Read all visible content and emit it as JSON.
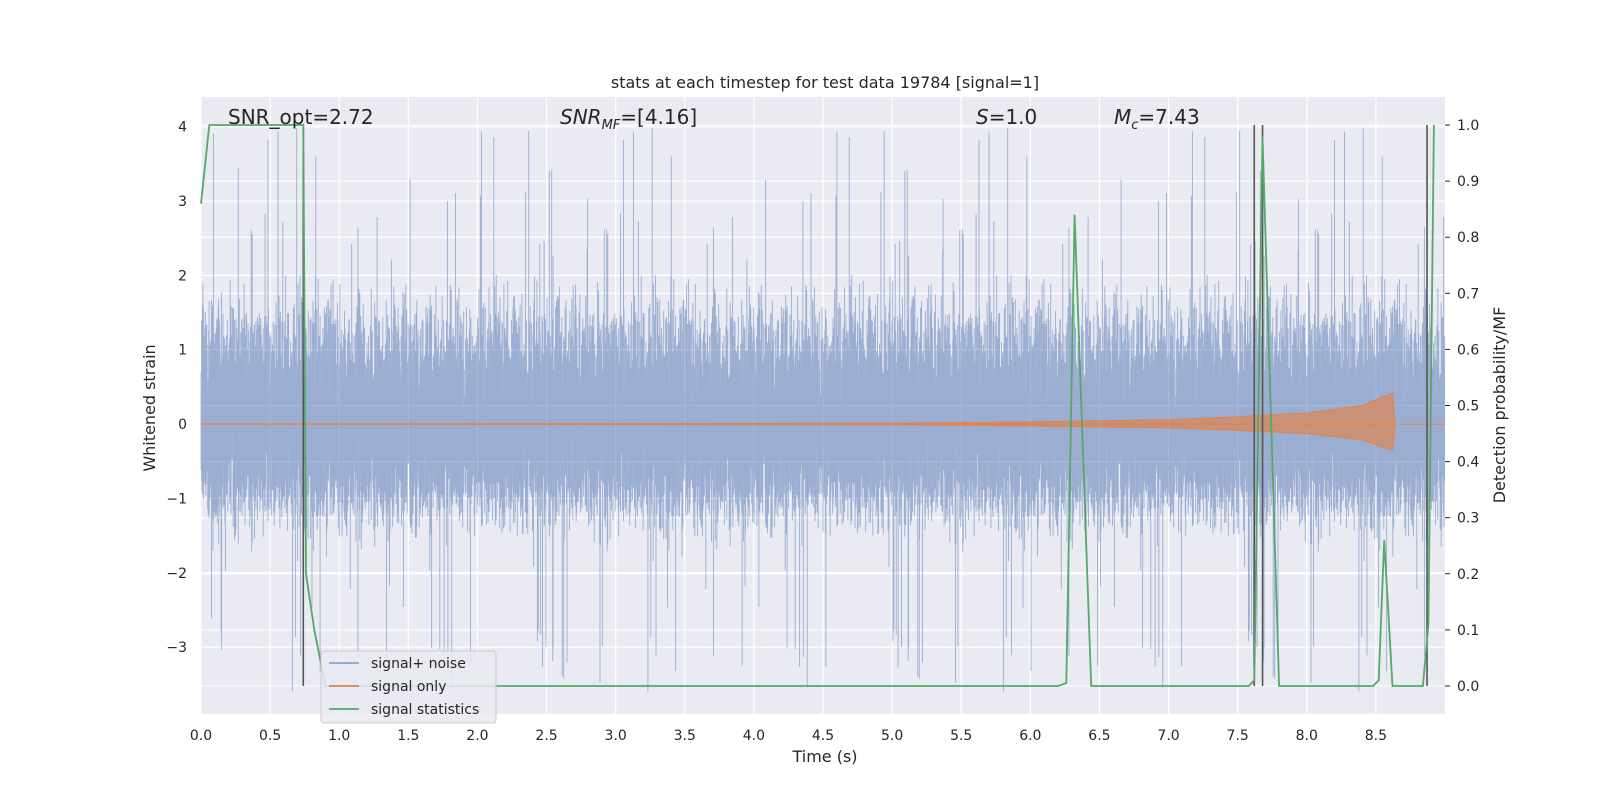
{
  "chart_data": {
    "type": "line",
    "title": "stats at each timestep for test data 19784 [signal=1]",
    "xlabel": "Time (s)",
    "ylabel_left": "Whitened strain",
    "ylabel_right": "Detection probability/MF",
    "xlim": [
      0.0,
      9.0
    ],
    "ylim_left": [
      -3.9,
      4.4
    ],
    "ylim_right": [
      -0.05,
      1.05
    ],
    "x_ticks": [
      "0.0",
      "0.5",
      "1.0",
      "1.5",
      "2.0",
      "2.5",
      "3.0",
      "3.5",
      "4.0",
      "4.5",
      "5.0",
      "5.5",
      "6.0",
      "6.5",
      "7.0",
      "7.5",
      "8.0",
      "8.5"
    ],
    "y_left_ticks": [
      "4",
      "3",
      "2",
      "1",
      "0",
      "−1",
      "−2",
      "−3"
    ],
    "y_right_ticks": [
      "1.0",
      "0.9",
      "0.8",
      "0.7",
      "0.6",
      "0.5",
      "0.4",
      "0.3",
      "0.2",
      "0.1",
      "0.0"
    ],
    "grid": true,
    "legend_position": "lower-left",
    "annotations": {
      "snr_opt": "SNR_opt=2.72",
      "snr_mf_base": "SNR",
      "snr_mf_sub": "MF",
      "snr_mf_value": "=[4.16]",
      "s_base": "S",
      "s_value": "=1.0",
      "mc_base": "M",
      "mc_sub": "c",
      "mc_value": "=7.43"
    },
    "series": [
      {
        "name": "signal+ noise",
        "color": "#4c72b0",
        "axis": "left",
        "description_of_values": "dense noise band between approx -1.3 and 1.7 with spikes reaching approx -3.6 and 4.0",
        "values": []
      },
      {
        "name": "signal only",
        "color": "#dd8452",
        "axis": "left",
        "envelope": [
          [
            0.0,
            0.0
          ],
          [
            5.0,
            0.01
          ],
          [
            6.0,
            0.03
          ],
          [
            7.0,
            0.06
          ],
          [
            7.5,
            0.1
          ],
          [
            8.0,
            0.15
          ],
          [
            8.4,
            0.25
          ],
          [
            8.62,
            0.42
          ],
          [
            8.64,
            0.0
          ],
          [
            9.0,
            0.0
          ]
        ]
      },
      {
        "name": "signal statistics",
        "color": "#55a868",
        "axis": "right",
        "x": [
          0.0,
          0.06,
          0.1,
          0.5,
          0.74,
          0.76,
          0.82,
          0.9,
          6.2,
          6.26,
          6.32,
          6.44,
          7.58,
          7.62,
          7.68,
          7.8,
          8.48,
          8.52,
          8.56,
          8.62,
          8.84,
          8.88,
          8.92
        ],
        "values": [
          0.86,
          1.0,
          1.0,
          1.0,
          1.0,
          0.2,
          0.1,
          0.0,
          0.0,
          0.005,
          0.84,
          0.0,
          0.0,
          0.01,
          0.98,
          0.0,
          0.0,
          0.01,
          0.26,
          0.0,
          0.0,
          0.11,
          1.0
        ]
      }
    ],
    "vertical_markers": [
      0.74,
      7.62,
      7.68,
      8.87
    ]
  }
}
